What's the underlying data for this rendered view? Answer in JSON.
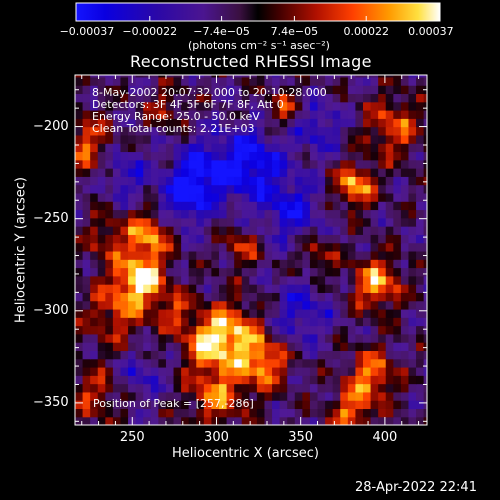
{
  "chart_data": {
    "type": "heatmap",
    "title": "Reconstructed RHESSI Image",
    "xlabel": "Heliocentric X (arcsec)",
    "ylabel": "Heliocentric Y (arcsec)",
    "xlim": [
      216,
      425
    ],
    "ylim": [
      -362,
      -172
    ],
    "x_ticks": [
      250,
      300,
      350,
      400
    ],
    "y_ticks": [
      -200,
      -250,
      -300,
      -350
    ],
    "colorbar": {
      "range": [
        -0.00037,
        0.00037
      ],
      "tick_values": [
        -0.00037,
        -0.00022,
        -7.4e-05,
        7.4e-05,
        0.00022,
        0.00037
      ],
      "tick_labels": [
        "-0.00037",
        "-0.00022",
        "-7.4e-05",
        "7.4e-05",
        "0.00022",
        "0.00037"
      ],
      "label": "(photons cm⁻² s⁻¹ asec⁻²)"
    },
    "annotations": [
      "8-May-2002 20:07:32.000 to 20:10:28.000",
      "Detectors: 3F 4F 5F 6F 7F 8F, Att 0",
      "Energy Range: 25.0 - 50.0 keV",
      "Clean    Total counts: 2.21E+03"
    ],
    "peak_label": "Position of Peak = [257,-286]",
    "peak": [
      257,
      -286
    ],
    "blobs": [
      {
        "x": 255,
        "y": -282,
        "sigma": 10,
        "amp": 1.0
      },
      {
        "x": 260,
        "y": -258,
        "sigma": 9,
        "amp": 0.8
      },
      {
        "x": 240,
        "y": -300,
        "sigma": 13,
        "amp": 0.55
      },
      {
        "x": 308,
        "y": -312,
        "sigma": 12,
        "amp": 0.9
      },
      {
        "x": 328,
        "y": -328,
        "sigma": 10,
        "amp": 0.8
      },
      {
        "x": 300,
        "y": -345,
        "sigma": 12,
        "amp": 0.7
      },
      {
        "x": 292,
        "y": -318,
        "sigma": 9,
        "amp": 0.6
      },
      {
        "x": 382,
        "y": -232,
        "sigma": 8,
        "amp": 0.9
      },
      {
        "x": 395,
        "y": -285,
        "sigma": 10,
        "amp": 0.85
      },
      {
        "x": 392,
        "y": -335,
        "sigma": 10,
        "amp": 0.75
      },
      {
        "x": 380,
        "y": -355,
        "sigma": 9,
        "amp": 0.65
      },
      {
        "x": 405,
        "y": -200,
        "sigma": 12,
        "amp": 0.6
      },
      {
        "x": 340,
        "y": -190,
        "sigma": 8,
        "amp": 0.5
      },
      {
        "x": 315,
        "y": -265,
        "sigma": 7,
        "amp": 0.55
      },
      {
        "x": 222,
        "y": -210,
        "sigma": 12,
        "amp": 0.6
      },
      {
        "x": 228,
        "y": -345,
        "sigma": 10,
        "amp": 0.5
      },
      {
        "x": 360,
        "y": -270,
        "sigma": 8,
        "amp": 0.45
      },
      {
        "x": 270,
        "y": -190,
        "sigma": 8,
        "amp": 0.4
      },
      {
        "x": 235,
        "y": -260,
        "sigma": 9,
        "amp": 0.45
      },
      {
        "x": 275,
        "y": -300,
        "sigma": 8,
        "amp": 0.5
      },
      {
        "x": 290,
        "y": -225,
        "sigma": 12,
        "amp": -0.7
      },
      {
        "x": 320,
        "y": -220,
        "sigma": 14,
        "amp": -0.8
      },
      {
        "x": 345,
        "y": -245,
        "sigma": 12,
        "amp": -0.6
      },
      {
        "x": 350,
        "y": -300,
        "sigma": 12,
        "amp": -0.5
      },
      {
        "x": 245,
        "y": -225,
        "sigma": 10,
        "amp": -0.5
      },
      {
        "x": 360,
        "y": -200,
        "sigma": 10,
        "amp": -0.5
      },
      {
        "x": 280,
        "y": -240,
        "sigma": 10,
        "amp": -0.6
      },
      {
        "x": 255,
        "y": -335,
        "sigma": 9,
        "amp": -0.4
      }
    ]
  },
  "footer": {
    "timestamp": "28-Apr-2022 22:41"
  }
}
